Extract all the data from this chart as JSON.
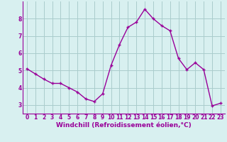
{
  "x": [
    0,
    1,
    2,
    3,
    4,
    5,
    6,
    7,
    8,
    9,
    10,
    11,
    12,
    13,
    14,
    15,
    16,
    17,
    18,
    19,
    20,
    21,
    22,
    23
  ],
  "y": [
    5.1,
    4.8,
    4.5,
    4.25,
    4.25,
    4.0,
    3.75,
    3.35,
    3.2,
    3.65,
    5.3,
    6.5,
    7.5,
    7.8,
    8.55,
    8.0,
    7.6,
    7.3,
    5.7,
    5.05,
    5.45,
    5.05,
    2.95,
    3.1
  ],
  "line_color": "#990099",
  "marker": "+",
  "marker_size": 3,
  "linewidth": 1.0,
  "bg_color": "#d8f0f0",
  "grid_color": "#aacccc",
  "xlabel": "Windchill (Refroidissement éolien,°C)",
  "xlabel_fontsize": 6.5,
  "tick_fontsize": 5.5,
  "xlim": [
    -0.5,
    23.5
  ],
  "ylim": [
    2.5,
    9.0
  ],
  "yticks": [
    3,
    4,
    5,
    6,
    7,
    8
  ],
  "xticks": [
    0,
    1,
    2,
    3,
    4,
    5,
    6,
    7,
    8,
    9,
    10,
    11,
    12,
    13,
    14,
    15,
    16,
    17,
    18,
    19,
    20,
    21,
    22,
    23
  ]
}
